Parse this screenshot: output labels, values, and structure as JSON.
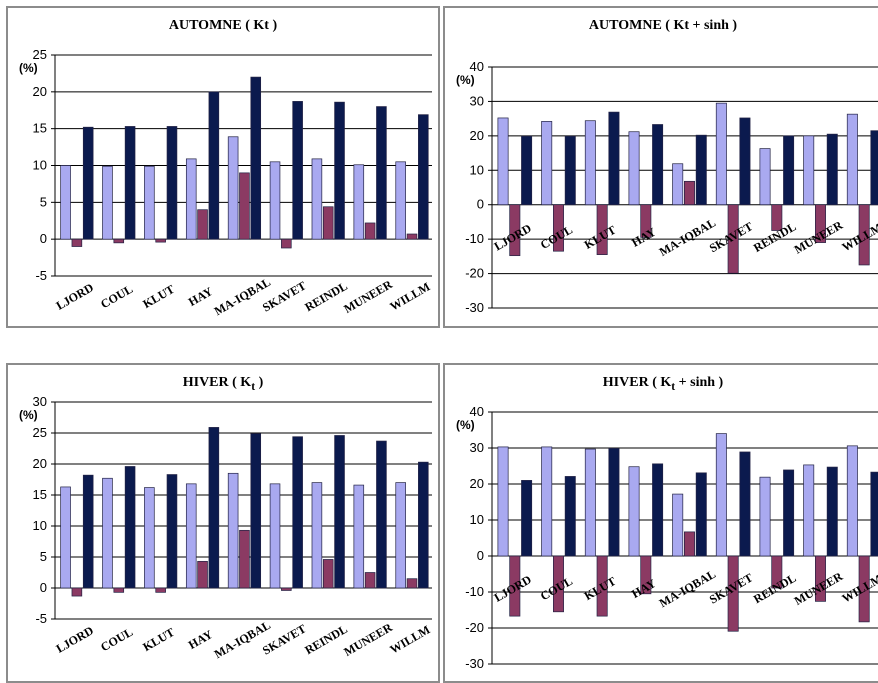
{
  "colors": {
    "series1": "#a9a9f0",
    "series2": "#8b3a63",
    "series3": "#0b1a4e"
  },
  "chart_data": [
    {
      "type": "bar",
      "title": "AUTOMNE ( Kt )",
      "title_main": "AUTOMNE (",
      "title_sub": "",
      "title_rest": "Kt )",
      "ylabel": "(%)",
      "ylim": [
        -5,
        25
      ],
      "yticks": [
        25,
        20,
        15,
        10,
        5,
        0,
        -5
      ],
      "grid": true,
      "categories": [
        "LJORD",
        "COUL",
        "KLUT",
        "HAY",
        "MA-IQBAL",
        "SKAVET",
        "REINDL",
        "MUNEER",
        "WILLM"
      ],
      "series": [
        {
          "values": [
            10.0,
            9.9,
            9.9,
            10.9,
            13.9,
            10.5,
            10.9,
            10.1,
            10.5
          ]
        },
        {
          "values": [
            -1.0,
            -0.5,
            -0.4,
            4.0,
            9.0,
            -1.2,
            4.4,
            2.2,
            0.7
          ]
        },
        {
          "values": [
            15.2,
            15.3,
            15.3,
            20.0,
            22.0,
            18.7,
            18.6,
            18.0,
            16.9
          ]
        }
      ]
    },
    {
      "type": "bar",
      "title": "AUTOMNE ( Kt + sinh )",
      "title_main": "AUTOMNE (",
      "title_sub": "",
      "title_rest": "Kt + sinh )",
      "ylabel": "(%)",
      "ylim": [
        -30,
        40
      ],
      "yticks": [
        40,
        30,
        20,
        10,
        0,
        -10,
        -20,
        -30
      ],
      "grid": true,
      "categories": [
        "LJORD",
        "COUL",
        "KLUT",
        "HAY",
        "MA-IQBAL",
        "SKAVET",
        "REINDL",
        "MUNEER",
        "WILLM"
      ],
      "series": [
        {
          "values": [
            25.2,
            24.2,
            24.4,
            21.2,
            11.9,
            29.5,
            16.3,
            20.0,
            26.3
          ]
        },
        {
          "values": [
            -14.8,
            -13.5,
            -14.5,
            -9.5,
            6.8,
            -19.9,
            -7.5,
            -11.0,
            -17.5
          ]
        },
        {
          "values": [
            19.9,
            19.9,
            26.9,
            23.3,
            20.2,
            25.2,
            20.0,
            20.5,
            21.5
          ]
        }
      ]
    },
    {
      "type": "bar",
      "title": "HIVER ( Kt )",
      "title_main": "HIVER (",
      "title_sub": "t",
      "title_rest": " )",
      "ylabel": "(%)",
      "ylim": [
        -5,
        30
      ],
      "yticks": [
        30,
        25,
        20,
        15,
        10,
        5,
        0,
        -5
      ],
      "grid": true,
      "categories": [
        "LJORD",
        "COUL",
        "KLUT",
        "HAY",
        "MA-IQBAL",
        "SKAVET",
        "REINDL",
        "MUNEER",
        "WILLM"
      ],
      "series": [
        {
          "values": [
            16.3,
            17.7,
            16.2,
            16.8,
            18.5,
            16.8,
            17.0,
            16.6,
            17.0
          ]
        },
        {
          "values": [
            -1.3,
            -0.7,
            -0.7,
            4.3,
            9.3,
            -0.4,
            4.6,
            2.5,
            1.5
          ]
        },
        {
          "values": [
            18.2,
            19.6,
            18.3,
            25.9,
            24.9,
            24.4,
            24.6,
            23.7,
            20.3
          ]
        }
      ]
    },
    {
      "type": "bar",
      "title": "HIVER ( Kt + sinh )",
      "title_main": "HIVER (",
      "title_sub": "t",
      "title_rest": " + sinh )",
      "ylabel": "(%)",
      "ylim": [
        -30,
        40
      ],
      "yticks": [
        40,
        30,
        20,
        10,
        0,
        -10,
        -20,
        -30
      ],
      "grid": true,
      "categories": [
        "LJORD",
        "COUL",
        "KLUT",
        "HAY",
        "MA-IQBAL",
        "SKAVET",
        "REINDL",
        "MUNEER",
        "WILLM"
      ],
      "series": [
        {
          "values": [
            30.3,
            30.3,
            29.7,
            24.8,
            17.2,
            34.0,
            21.9,
            25.3,
            30.6
          ]
        },
        {
          "values": [
            -16.7,
            -15.5,
            -16.7,
            -10.5,
            6.7,
            -20.9,
            -8.9,
            -12.6,
            -18.3
          ]
        },
        {
          "values": [
            21.0,
            22.1,
            29.9,
            25.6,
            23.1,
            28.9,
            23.9,
            24.7,
            23.3
          ]
        }
      ]
    }
  ]
}
